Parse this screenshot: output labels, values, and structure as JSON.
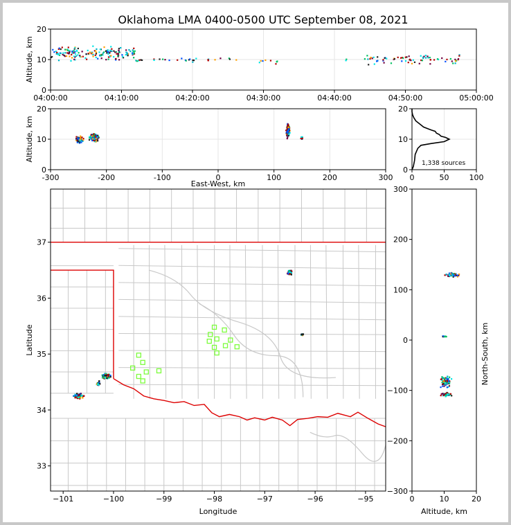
{
  "title": "Oklahoma LMA 0400-0500 UTC September 08, 2021",
  "colors": {
    "grid": "#e6e6e6",
    "county": "#c8c8c8",
    "state": "#dd0000",
    "station": "#7cfc3c",
    "source_palette": [
      "#00e6e6",
      "#00b4c8",
      "#0050ff",
      "#00c060",
      "#ffa000",
      "#b40000",
      "#700040",
      "#202020"
    ]
  },
  "chart_data": [
    {
      "id": "time_altitude",
      "type": "scatter",
      "ylabel": "Altitude, km",
      "xlim": [
        "04:00:00",
        "05:00:00"
      ],
      "ylim": [
        0,
        20
      ],
      "x_ticks": [
        "04:00:00",
        "04:10:00",
        "04:20:00",
        "04:30:00",
        "04:40:00",
        "04:50:00",
        "05:00:00"
      ],
      "y_ticks": [
        0,
        10,
        20
      ],
      "grid": true,
      "clusters": [
        {
          "t_start_min": 0,
          "t_end_min": 12,
          "alt_center": 12,
          "alt_spread": 2.5,
          "count": 170
        },
        {
          "t_start_min": 12,
          "t_end_min": 27,
          "alt_center": 10,
          "alt_spread": 0.8,
          "count": 30
        },
        {
          "t_start_min": 29,
          "t_end_min": 32,
          "alt_center": 9.5,
          "alt_spread": 1,
          "count": 8
        },
        {
          "t_start_min": 41,
          "t_end_min": 44.5,
          "alt_center": 10,
          "alt_spread": 0.5,
          "count": 3
        },
        {
          "t_start_min": 44.5,
          "t_end_min": 58,
          "alt_center": 10,
          "alt_spread": 2,
          "count": 70
        }
      ]
    },
    {
      "id": "eastwest_altitude",
      "type": "scatter",
      "xlabel": "East-West, km",
      "ylabel": "Altitude, km",
      "xlim": [
        -300,
        300
      ],
      "ylim": [
        0,
        20
      ],
      "x_ticks": [
        -300,
        -200,
        -100,
        0,
        100,
        200,
        300
      ],
      "y_ticks": [
        0,
        10,
        20
      ],
      "grid": true,
      "clusters": [
        {
          "x_center": -248,
          "x_spread": 7,
          "alt_center": 9.8,
          "alt_spread": 1.2,
          "count": 70
        },
        {
          "x_center": -222,
          "x_spread": 10,
          "alt_center": 10.5,
          "alt_spread": 1.6,
          "count": 90
        },
        {
          "x_center": 125,
          "x_spread": 4,
          "alt_center": 12.5,
          "alt_spread": 2.5,
          "count": 110
        },
        {
          "x_center": 150,
          "x_spread": 2,
          "alt_center": 10.5,
          "alt_spread": 0.7,
          "count": 10
        }
      ]
    },
    {
      "id": "altitude_histogram",
      "type": "line",
      "xlim": [
        0,
        100
      ],
      "ylim": [
        0,
        20
      ],
      "x_ticks": [
        0,
        50,
        100
      ],
      "y_ticks": [
        0,
        10,
        20
      ],
      "annotation": "1,338 sources",
      "profile": [
        [
          0,
          0
        ],
        [
          2,
          1
        ],
        [
          4,
          3
        ],
        [
          5,
          5
        ],
        [
          7,
          6
        ],
        [
          9,
          7
        ],
        [
          14,
          8
        ],
        [
          30,
          8.6
        ],
        [
          50,
          9.2
        ],
        [
          58,
          10
        ],
        [
          52,
          10.6
        ],
        [
          45,
          11
        ],
        [
          42,
          11.6
        ],
        [
          38,
          12
        ],
        [
          36,
          12.6
        ],
        [
          30,
          13
        ],
        [
          25,
          13.4
        ],
        [
          18,
          14
        ],
        [
          12,
          15
        ],
        [
          6,
          16
        ],
        [
          3,
          17
        ],
        [
          1,
          18
        ],
        [
          0,
          19
        ],
        [
          0,
          20
        ]
      ]
    },
    {
      "id": "plan_view",
      "type": "scatter",
      "xlabel": "Longitude",
      "ylabel": "Latitude",
      "xlim": [
        -101.25,
        -94.6
      ],
      "ylim": [
        32.55,
        37.95
      ],
      "x_ticks": [
        -101,
        -100,
        -99,
        -98,
        -97,
        -96,
        -95
      ],
      "y_ticks": [
        33,
        34,
        35,
        36,
        37
      ],
      "stations": [
        [
          -99.5,
          34.98
        ],
        [
          -99.42,
          34.85
        ],
        [
          -99.62,
          34.75
        ],
        [
          -99.35,
          34.68
        ],
        [
          -99.1,
          34.7
        ],
        [
          -99.5,
          34.6
        ],
        [
          -99.42,
          34.52
        ],
        [
          -98.0,
          35.48
        ],
        [
          -97.8,
          35.43
        ],
        [
          -98.08,
          35.35
        ],
        [
          -97.95,
          35.27
        ],
        [
          -98.1,
          35.23
        ],
        [
          -97.68,
          35.25
        ],
        [
          -97.78,
          35.15
        ],
        [
          -97.55,
          35.13
        ],
        [
          -98.0,
          35.12
        ],
        [
          -97.95,
          35.02
        ]
      ],
      "clusters": [
        {
          "lon_center": -100.15,
          "lon_spread": 0.1,
          "lat_center": 34.6,
          "lat_spread": 0.05,
          "count": 70
        },
        {
          "lon_center": -100.3,
          "lon_spread": 0.04,
          "lat_center": 34.48,
          "lat_spread": 0.04,
          "count": 20
        },
        {
          "lon_center": -100.7,
          "lon_spread": 0.1,
          "lat_center": 34.25,
          "lat_spread": 0.05,
          "count": 60
        },
        {
          "lon_center": -96.5,
          "lon_spread": 0.05,
          "lat_center": 36.46,
          "lat_spread": 0.04,
          "count": 80
        },
        {
          "lon_center": -96.26,
          "lon_spread": 0.03,
          "lat_center": 35.35,
          "lat_spread": 0.02,
          "count": 10
        }
      ]
    },
    {
      "id": "altitude_northsouth",
      "type": "scatter",
      "xlabel": "Altitude, km",
      "ylabel": "North-South, km",
      "xlim": [
        0,
        20
      ],
      "ylim": [
        -300,
        300
      ],
      "x_ticks": [
        0,
        10,
        20
      ],
      "y_ticks": [
        -300,
        -200,
        -100,
        0,
        100,
        200,
        300
      ],
      "clusters": [
        {
          "alt_center": 12.5,
          "alt_spread": 2.2,
          "y_center": 130,
          "y_spread": 4,
          "count": 80
        },
        {
          "alt_center": 10,
          "alt_spread": 0.8,
          "y_center": 8,
          "y_spread": 2,
          "count": 10
        },
        {
          "alt_center": 10.5,
          "alt_spread": 1.8,
          "y_center": -83,
          "y_spread": 12,
          "count": 90
        },
        {
          "alt_center": 10.5,
          "alt_spread": 1.8,
          "y_center": -108,
          "y_spread": 4,
          "count": 60
        }
      ]
    }
  ]
}
